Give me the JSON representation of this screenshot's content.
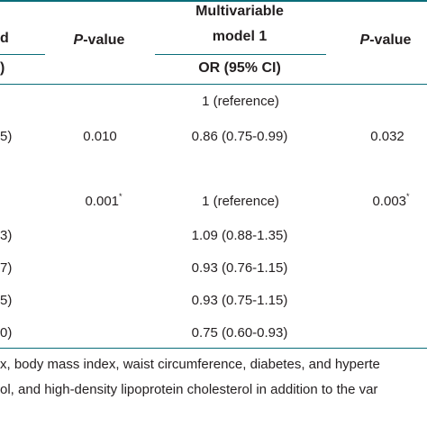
{
  "header": {
    "col0_top": "d",
    "col0_sub": ")",
    "pvalue1_italic": "P",
    "pvalue1_rest": "-value",
    "model_line1": "Multivariable",
    "model_line2": "model 1",
    "model_sub": "OR (95% CI)",
    "pvalue2_italic": "P",
    "pvalue2_rest": "-value"
  },
  "rows": [
    {
      "c0": "",
      "p1": "",
      "p1_sup": "",
      "or": "1 (reference)",
      "p2": "",
      "p2_sup": ""
    },
    {
      "c0": "5)",
      "p1": "0.010",
      "p1_sup": "",
      "or": "0.86 (0.75-0.99)",
      "p2": "0.032",
      "p2_sup": ""
    },
    {
      "c0": "",
      "p1": "0.001",
      "p1_sup": "*",
      "or": "1 (reference)",
      "p2": "0.003",
      "p2_sup": "*"
    },
    {
      "c0": "3)",
      "p1": "",
      "p1_sup": "",
      "or": "1.09 (0.88-1.35)",
      "p2": "",
      "p2_sup": ""
    },
    {
      "c0": "7)",
      "p1": "",
      "p1_sup": "",
      "or": "0.93 (0.76-1.15)",
      "p2": "",
      "p2_sup": ""
    },
    {
      "c0": "5)",
      "p1": "",
      "p1_sup": "",
      "or": "0.93 (0.75-1.15)",
      "p2": "",
      "p2_sup": ""
    },
    {
      "c0": "0)",
      "p1": "",
      "p1_sup": "",
      "or": "0.75 (0.60-0.93)",
      "p2": "",
      "p2_sup": ""
    }
  ],
  "footnote": {
    "line1": "x, body mass index, waist circumference, diabetes, and hyperte",
    "line2": "ol, and high-density lipoprotein cholesterol in addition to the var"
  },
  "colors": {
    "rule": "#0a6d79",
    "text": "#231f20"
  }
}
